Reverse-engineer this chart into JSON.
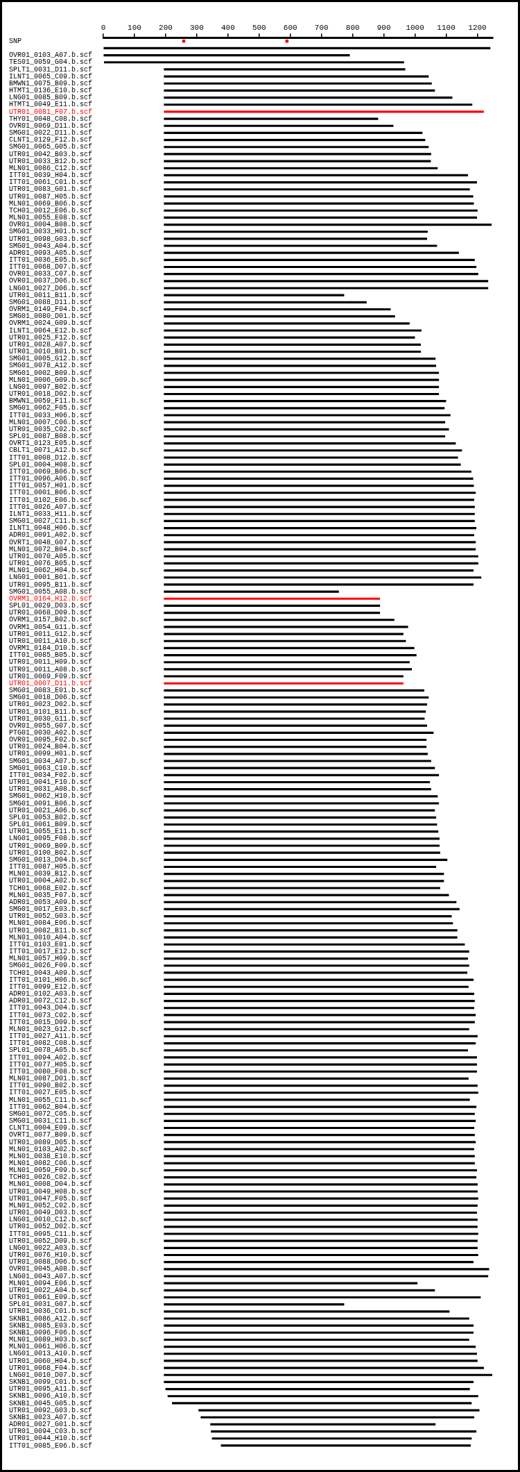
{
  "chart_data": {
    "type": "bar",
    "orientation": "horizontal",
    "categories": [
      "SNP",
      null,
      "OVR01_0103_A07.b.scf",
      "TES01_0059_G04.b.scf",
      "SPLT1_0031_D11.b.scf",
      "ILNT1_0065_C09.b.scf",
      "BMWN1_0075_B09.b.scf",
      "HTMT1_0136_E10.b.scf",
      "LNG01_0085_B09.b.scf",
      "HTMT1_0049_E11.b.scf",
      "UTR01_0081_F07.b.scf",
      "THY01_0048_C08.b.scf",
      "OVR01_0069_D11.b.scf",
      "SMG01_0022_D11.b.scf",
      "CLNT1_0129_F12.b.scf",
      "SMG01_0065_G05.b.scf",
      "UTR01_0042_B03.b.scf",
      "UTR01_0033_B12.b.scf",
      "MLN01_0086_C12.b.scf",
      "ITT01_0039_H04.b.scf",
      "ITT01_0061_C01.b.scf",
      "UTR01_0083_G01.b.scf",
      "UTR01_0087_H05.b.scf",
      "MLN01_0069_B06.b.scf",
      "TCH01_0012_E06.b.scf",
      "MLN01_0055_E08.b.scf",
      "OVR01_0004_B08.b.scf",
      "SMG01_0033_H01.b.scf",
      "UTR01_0098_G03.b.scf",
      "SMG01_0043_A04.b.scf",
      "ADR01_0093_A05.b.scf",
      "ITT01_0036_E05.b.scf",
      "ITT01_0068_D07.b.scf",
      "OVR01_0033_C07.b.scf",
      "OVR01_0037_D06.b.scf",
      "LNG01_0027_D06.b.scf",
      "UTR01_0011_B11.b.scf",
      "SMG01_0088_D11.b.scf",
      "OVRM1_0149_F04.b.scf",
      "SMG01_0080_D01.b.scf",
      "OVRM1_0024_G09.b.scf",
      "ILNT1_0064_E12.b.scf",
      "UTR01_0025_F12.b.scf",
      "UTR01_0028_A07.b.scf",
      "UTR01_0010_B01.b.scf",
      "SMG01_0005_G12.b.scf",
      "SMG01_0078_A12.b.scf",
      "SMG01_0002_B09.b.scf",
      "MLN01_0006_G09.b.scf",
      "LNG01_0097_B02.b.scf",
      "UTR01_0018_D02.b.scf",
      "BMWN1_0059_F11.b.scf",
      "SMG01_0062_F05.b.scf",
      "ITT01_0033_H06.b.scf",
      "MLN01_0007_C06.b.scf",
      "UTR01_0035_C02.b.scf",
      "SPL01_0087_B08.b.scf",
      "OVRT1_0123_E05.b.scf",
      "CBLT1_0071_A12.b.scf",
      "ITT01_0008_D12.b.scf",
      "SPL01_0004_H08.b.scf",
      "ITT01_0069_B06.b.scf",
      "ITT01_0096_A06.b.scf",
      "ITT01_0057_H01.b.scf",
      "ITT01_0001_B06.b.scf",
      "ITT01_0102_E06.b.scf",
      "ITT01_0026_A07.b.scf",
      "ILNT1_0033_H11.b.scf",
      "SMG01_0027_C11.b.scf",
      "ILNT1_0048_H06.b.scf",
      "ADR01_0091_A02.b.scf",
      "OVRT1_0048_G07.b.scf",
      "MLN01_0072_B04.b.scf",
      "UTR01_0070_A05.b.scf",
      "UTR01_0076_B05.b.scf",
      "MLN01_0062_H04.b.scf",
      "LNG01_0001_B01.b.scf",
      "UTR01_0095_B11.b.scf",
      "SMG01_0055_A08.b.scf",
      "OVRM1_0164_H12.b.scf",
      "SPL01_0029_D03.b.scf",
      "UTR01_0068_D09.b.scf",
      "OVRM1_0157_B02.b.scf",
      "OVRM1_0054_G11.b.scf",
      "UTR01_0011_G12.b.scf",
      "UTR01_0011_A10.b.scf",
      "OVRM1_0184_D10.b.scf",
      "ITT01_0085_B05.b.scf",
      "UTR01_0011_H09.b.scf",
      "UTR01_0011_A08.b.scf",
      "UTR01_0069_F09.b.scf",
      "UTR01_0007_D11.b.scf",
      "SMG01_0083_E01.b.scf",
      "SMG01_0018_D06.b.scf",
      "UTR01_0023_D02.b.scf",
      "UTR01_0101_B11.b.scf",
      "UTR01_0030_G11.b.scf",
      "OVR01_0055_G07.b.scf",
      "PTG01_0030_A02.b.scf",
      "OVR01_0095_F02.b.scf",
      "UTR01_0024_B04.b.scf",
      "UTR01_0099_H01.b.scf",
      "SMG01_0034_A07.b.scf",
      "SMG01_0063_C10.b.scf",
      "ITT01_0034_F02.b.scf",
      "UTR01_0041_F10.b.scf",
      "UTR01_0031_A08.b.scf",
      "SMG01_0062_H10.b.scf",
      "SMG01_0091_B06.b.scf",
      "UTR01_0021_A06.b.scf",
      "SPL01_0053_B02.b.scf",
      "SPL01_0061_B09.b.scf",
      "UTR01_0055_E11.b.scf",
      "LNG01_0095_F08.b.scf",
      "UTR01_0069_B09.b.scf",
      "UTR01_0100_B02.b.scf",
      "SMG01_0013_D04.b.scf",
      "ITT01_0087_H05.b.scf",
      "MLN01_0039_B12.b.scf",
      "UTR01_0004_A02.b.scf",
      "TCH01_0068_E02.b.scf",
      "MLN01_0035_F07.b.scf",
      "ADR01_0053_A09.b.scf",
      "SMG01_0017_E03.b.scf",
      "UTR01_0052_G03.b.scf",
      "MLN01_0084_E06.b.scf",
      "UTR01_0082_B11.b.scf",
      "MLN01_0010_A04.b.scf",
      "ITT01_0103_E01.b.scf",
      "ITT01_0017_E12.b.scf",
      "MLN01_0057_H09.b.scf",
      "SMG01_0026_F09.b.scf",
      "TCH01_0043_A09.b.scf",
      "ITT01_0101_H06.b.scf",
      "ITT01_0099_E12.b.scf",
      "ADR01_0102_A03.b.scf",
      "ADR01_0072_C12.b.scf",
      "ITT01_0043_D04.b.scf",
      "ITT01_0073_C02.b.scf",
      "ITT01_0015_D09.b.scf",
      "MLN01_0023_G12.b.scf",
      "ITT01_0027_A11.b.scf",
      "ITT01_0082_C08.b.scf",
      "SPL01_0078_A05.b.scf",
      "ITT01_0094_A02.b.scf",
      "ITT01_0077_H05.b.scf",
      "ITT01_0080_F08.b.scf",
      "MLN01_0087_D01.b.scf",
      "ITT01_0090_B02.b.scf",
      "ITT01_0027_E05.b.scf",
      "MLN01_0055_C11.b.scf",
      "ITT01_0062_B04.b.scf",
      "SMG01_0072_C05.b.scf",
      "SMG01_0031_C11.b.scf",
      "CLNT1_0004_E09.b.scf",
      "OVRT1_0077_B09.b.scf",
      "UTR01_0089_D05.b.scf",
      "MLN01_0103_A02.b.scf",
      "MLN01_0038_E10.b.scf",
      "MLN01_0082_C06.b.scf",
      "MLN01_0059_F09.b.scf",
      "TCH01_0026_C02.b.scf",
      "MLN01_0008_D04.b.scf",
      "UTR01_0049_H08.b.scf",
      "UTR01_0047_F05.b.scf",
      "MLN01_0052_C02.b.scf",
      "UTR01_0049_D03.b.scf",
      "LNG01_0010_C12.b.scf",
      "UTR01_0052_D02.b.scf",
      "ITT01_0095_C11.b.scf",
      "UTR01_0052_D09.b.scf",
      "LNG01_0022_A03.b.scf",
      "UTR01_0076_H10.b.scf",
      "UTR01_0088_D06.b.scf",
      "OVR01_0045_A08.b.scf",
      "LNG01_0043_A07.b.scf",
      "MLN01_0094_E06.b.scf",
      "UTR01_0022_A04.b.scf",
      "UTR01_0061_E09.b.scf",
      "SPL01_0031_G07.b.scf",
      "UTR01_0036_C01.b.scf",
      "SKNB1_0086_A12.b.scf",
      "SKNB1_0085_E03.b.scf",
      "SKNB1_0096_F06.b.scf",
      "MLN01_0089_H03.b.scf",
      "MLN01_0061_H06.b.scf",
      "LNG01_0013_A10.b.scf",
      "UTR01_0060_H04.b.scf",
      "UTR01_0068_F04.b.scf",
      "LNG01_0010_D07.b.scf",
      "SKNB1_0099_C01.b.scf",
      "UTR01_0095_A11.b.scf",
      "SKNB1_0096_A10.b.scf",
      "SKNB1_0045_G05.b.scf",
      "UTR01_0092_G03.b.scf",
      "SKNB1_0023_A07.b.scf",
      "ADR01_0027_G01.b.scf",
      "UTR01_0094_C03.b.scf",
      "UTR01_0044_H10.b.scf",
      "ITT01_0085_E06.b.scf"
    ],
    "xlim": [
      0,
      1250
    ],
    "xticks": [
      0,
      100,
      200,
      300,
      400,
      500,
      600,
      700,
      800,
      900,
      1000,
      1100,
      1200
    ],
    "series": [
      {
        "base": [
          null,
          0,
          0,
          3,
          195,
          195,
          195,
          195,
          195,
          195,
          195,
          195,
          195,
          195,
          195,
          195,
          195,
          195,
          195,
          195,
          195,
          195,
          195,
          195,
          195,
          195,
          195,
          195,
          195,
          195,
          195,
          195,
          195,
          195,
          195,
          195,
          195,
          195,
          195,
          195,
          195,
          195,
          195,
          195,
          195,
          195,
          195,
          195,
          195,
          195,
          195,
          195,
          195,
          195,
          195,
          195,
          195,
          195,
          195,
          195,
          195,
          195,
          195,
          195,
          195,
          195,
          195,
          195,
          195,
          195,
          195,
          195,
          195,
          195,
          195,
          195,
          195,
          195,
          195,
          195,
          195,
          195,
          195,
          195,
          195,
          195,
          195,
          195,
          195,
          195,
          195,
          195,
          195,
          195,
          195,
          195,
          195,
          195,
          195,
          195,
          195,
          195,
          195,
          195,
          195,
          195,
          195,
          195,
          195,
          195,
          195,
          195,
          195,
          195,
          195,
          195,
          195,
          195,
          195,
          195,
          195,
          195,
          195,
          195,
          195,
          195,
          195,
          195,
          195,
          195,
          195,
          195,
          195,
          195,
          195,
          195,
          195,
          195,
          195,
          195,
          195,
          195,
          195,
          195,
          195,
          195,
          195,
          195,
          195,
          195,
          195,
          195,
          195,
          195,
          195,
          195,
          195,
          195,
          195,
          195,
          195,
          195,
          195,
          195,
          195,
          195,
          195,
          195,
          195,
          195,
          195,
          195,
          195,
          195,
          195,
          195,
          195,
          195,
          195,
          195,
          195,
          195,
          195,
          195,
          195,
          195,
          195,
          195,
          195,
          195,
          195,
          200,
          207,
          221,
          306,
          313,
          344,
          346,
          349,
          378
        ],
        "values": [
          null,
          1241,
          790,
          961,
          773,
          848,
          858,
          868,
          924,
          988,
          1025,
          686,
          735,
          828,
          837,
          848,
          856,
          855,
          877,
          974,
          1003,
          980,
          991,
          993,
          1005,
          1003,
          1050,
          845,
          843,
          875,
          945,
          996,
          1001,
          1007,
          1039,
          1039,
          577,
          649,
          726,
          740,
          787,
          825,
          804,
          823,
          823,
          870,
          872,
          881,
          881,
          881,
          881,
          904,
          899,
          918,
          901,
          913,
          901,
          935,
          955,
          942,
          951,
          985,
          991,
          993,
          999,
          994,
          996,
          996,
          996,
          1001,
          994,
          999,
          999,
          1007,
          1007,
          992,
          1017,
          992,
          560,
          692,
          692,
          692,
          738,
          782,
          767,
          775,
          802,
          809,
          787,
          794,
          767,
          767,
          834,
          848,
          843,
          839,
          835,
          843,
          864,
          841,
          841,
          845,
          856,
          868,
          881,
          852,
          856,
          877,
          881,
          868,
          872,
          875,
          879,
          883,
          883,
          885,
          908,
          872,
          897,
          897,
          885,
          913,
          937,
          947,
          922,
          926,
          940,
          940,
          964,
          978,
          974,
          978,
          972,
          992,
          976,
          994,
          996,
          994,
          999,
          996,
          978,
          1005,
          999,
          974,
          1003,
          1003,
          1003,
          976,
          1005,
          1007,
          980,
          1001,
          996,
          999,
          994,
          996,
          999,
          994,
          996,
          996,
          1003,
          1001,
          1005,
          1005,
          1007,
          1005,
          1003,
          1005,
          1005,
          1007,
          1005,
          1005,
          1007,
          992,
          1042,
          1039,
          812,
          868,
          1015,
          577,
          915,
          978,
          992,
          992,
          978,
          999,
          1003,
          1005,
          1025,
          1052,
          992,
          975,
          995,
          960,
          900,
          876,
          721,
          850,
          832,
          800
        ],
        "colors": [
          "#000000",
          "#000000",
          "#000000",
          "#000000",
          "#000000",
          "#000000",
          "#000000",
          "#000000",
          "#000000",
          "#000000",
          "#ff0000",
          "#000000",
          "#000000",
          "#000000",
          "#000000",
          "#000000",
          "#000000",
          "#000000",
          "#000000",
          "#000000",
          "#000000",
          "#000000",
          "#000000",
          "#000000",
          "#000000",
          "#000000",
          "#000000",
          "#000000",
          "#000000",
          "#000000",
          "#000000",
          "#000000",
          "#000000",
          "#000000",
          "#000000",
          "#000000",
          "#000000",
          "#000000",
          "#000000",
          "#000000",
          "#000000",
          "#000000",
          "#000000",
          "#000000",
          "#000000",
          "#000000",
          "#000000",
          "#000000",
          "#000000",
          "#000000",
          "#000000",
          "#000000",
          "#000000",
          "#000000",
          "#000000",
          "#000000",
          "#000000",
          "#000000",
          "#000000",
          "#000000",
          "#000000",
          "#000000",
          "#000000",
          "#000000",
          "#000000",
          "#000000",
          "#000000",
          "#000000",
          "#000000",
          "#000000",
          "#000000",
          "#000000",
          "#000000",
          "#000000",
          "#000000",
          "#000000",
          "#000000",
          "#000000",
          "#000000",
          "#ff0000",
          "#000000",
          "#000000",
          "#000000",
          "#000000",
          "#000000",
          "#000000",
          "#000000",
          "#000000",
          "#000000",
          "#000000",
          "#000000",
          "#ff0000",
          "#000000",
          "#000000",
          "#000000",
          "#000000",
          "#000000",
          "#000000",
          "#000000",
          "#000000",
          "#000000",
          "#000000",
          "#000000",
          "#000000",
          "#000000",
          "#000000",
          "#000000",
          "#000000",
          "#000000",
          "#000000",
          "#000000",
          "#000000",
          "#000000",
          "#000000",
          "#000000",
          "#000000",
          "#000000",
          "#000000",
          "#000000",
          "#000000",
          "#000000",
          "#000000",
          "#000000",
          "#000000",
          "#000000",
          "#000000",
          "#000000",
          "#000000",
          "#000000",
          "#000000",
          "#000000",
          "#000000",
          "#000000",
          "#000000",
          "#000000",
          "#000000",
          "#000000",
          "#000000",
          "#000000",
          "#000000",
          "#000000",
          "#000000",
          "#000000",
          "#000000",
          "#000000",
          "#000000",
          "#000000",
          "#000000",
          "#000000",
          "#000000",
          "#000000",
          "#000000",
          "#000000",
          "#000000",
          "#000000",
          "#000000",
          "#000000",
          "#000000",
          "#000000",
          "#000000",
          "#000000",
          "#000000",
          "#000000",
          "#000000",
          "#000000",
          "#000000",
          "#000000",
          "#000000",
          "#000000",
          "#000000",
          "#000000",
          "#000000",
          "#000000",
          "#000000",
          "#000000",
          "#000000",
          "#000000",
          "#000000",
          "#000000",
          "#000000",
          "#000000",
          "#000000",
          "#000000",
          "#000000",
          "#000000",
          "#000000",
          "#000000",
          "#000000",
          "#000000",
          "#000000",
          "#000000",
          "#000000",
          "#000000",
          "#000000",
          "#000000",
          "#000000",
          "#000000",
          "#000000",
          "#000000",
          "#000000"
        ]
      },
      {
        "type": "scatter",
        "color": "#ff0000",
        "marker": "square",
        "x": [
          "SNP",
          "SNP"
        ],
        "values": [
          258,
          589
        ]
      }
    ]
  }
}
